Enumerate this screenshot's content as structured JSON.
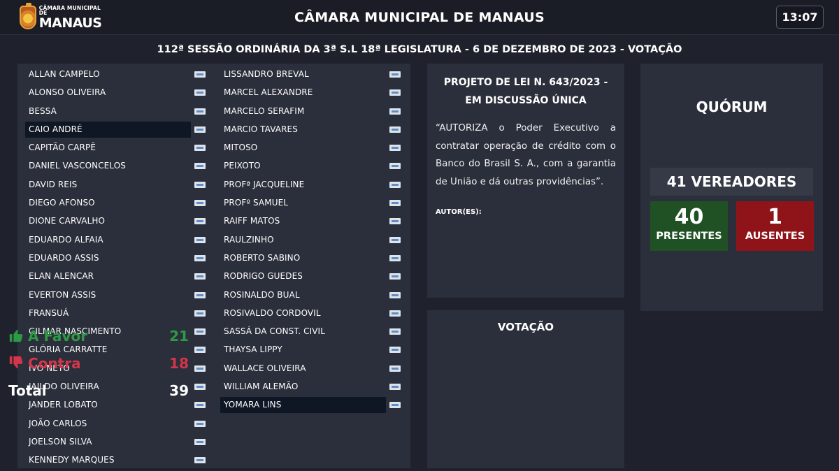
{
  "header": {
    "logo_small": "CÂMARA MUNICIPAL DE",
    "logo_big": "MANAUS",
    "title": "CÂMARA MUNICIPAL DE MANAUS",
    "clock": "13:07"
  },
  "session": "112ª SESSÃO ORDINÁRIA DA 3ª S.L 18ª LEGISLATURA - 6 DE DEZEMBRO DE 2023 - VOTAÇÃO",
  "colors": {
    "contra": "#d5354a",
    "favor": "#2e9a45",
    "no_vote": "#0f1624",
    "present": "#1f5124",
    "absent": "#8f1419"
  },
  "councillors": {
    "column_a": [
      {
        "name": "ALLAN CAMPELO",
        "status": "contra"
      },
      {
        "name": "ALONSO OLIVEIRA",
        "status": "favor"
      },
      {
        "name": "BESSA",
        "status": "contra"
      },
      {
        "name": "CAIO ANDRÉ",
        "status": "none"
      },
      {
        "name": "CAPITÃO CARPÊ",
        "status": "contra"
      },
      {
        "name": "DANIEL VASCONCELOS",
        "status": "contra"
      },
      {
        "name": "DAVID REIS",
        "status": "favor"
      },
      {
        "name": "DIEGO AFONSO",
        "status": "contra"
      },
      {
        "name": "DIONE CARVALHO",
        "status": "favor"
      },
      {
        "name": "EDUARDO ALFAIA",
        "status": "favor"
      },
      {
        "name": "EDUARDO ASSIS",
        "status": "favor"
      },
      {
        "name": "ELAN ALENCAR",
        "status": "favor"
      },
      {
        "name": "EVERTON ASSIS",
        "status": "contra"
      },
      {
        "name": "FRANSUÁ",
        "status": "favor"
      },
      {
        "name": "GILMAR NASCIMENTO",
        "status": "favor"
      },
      {
        "name": "GLÓRIA CARRATTE",
        "status": "contra"
      },
      {
        "name": "IVO NETO",
        "status": "contra"
      },
      {
        "name": "JAILDO OLIVEIRA",
        "status": "contra"
      },
      {
        "name": "JANDER LOBATO",
        "status": "favor"
      },
      {
        "name": "JOÃO CARLOS",
        "status": "contra"
      },
      {
        "name": "JOELSON SILVA",
        "status": "favor"
      },
      {
        "name": "KENNEDY MARQUES",
        "status": "favor"
      }
    ],
    "column_b": [
      {
        "name": "LISSANDRO BREVAL",
        "status": "contra"
      },
      {
        "name": "MARCEL ALEXANDRE",
        "status": "favor"
      },
      {
        "name": "MARCELO SERAFIM",
        "status": "contra"
      },
      {
        "name": "MARCIO TAVARES",
        "status": "contra"
      },
      {
        "name": "MITOSO",
        "status": "favor"
      },
      {
        "name": "PEIXOTO",
        "status": "favor"
      },
      {
        "name": "PROFª JACQUELINE",
        "status": "contra"
      },
      {
        "name": "PROFº SAMUEL",
        "status": "favor"
      },
      {
        "name": "RAIFF MATOS",
        "status": "favor"
      },
      {
        "name": "RAULZINHO",
        "status": "favor"
      },
      {
        "name": "ROBERTO SABINO",
        "status": "favor"
      },
      {
        "name": "RODRIGO GUEDES",
        "status": "contra"
      },
      {
        "name": "ROSINALDO BUAL",
        "status": "favor"
      },
      {
        "name": "ROSIVALDO CORDOVIL",
        "status": "contra"
      },
      {
        "name": "SASSÁ DA CONST. CIVIL",
        "status": "favor"
      },
      {
        "name": "THAYSA LIPPY",
        "status": "contra"
      },
      {
        "name": "WALLACE OLIVEIRA",
        "status": "favor"
      },
      {
        "name": "WILLIAM ALEMÃO",
        "status": "contra"
      },
      {
        "name": "YOMARA LINS",
        "status": "none"
      }
    ]
  },
  "bill": {
    "title": "PROJETO DE LEI N. 643/2023 - EM DISCUSSÃO ÚNICA",
    "text": "“AUTORIZA o Poder Executivo a contratar operação de crédito com o Banco do Brasil S. A., com a garantia de União e dá outras providências”.",
    "authors_label": "AUTOR(ES):"
  },
  "voting": {
    "title": "VOTAÇÃO",
    "favor_label": "A Favor",
    "favor_count": "21",
    "contra_label": "Contra",
    "contra_count": "18",
    "total_label": "Total",
    "total_count": "39"
  },
  "quorum": {
    "title": "QUÓRUM",
    "vereadores": "41 VEREADORES",
    "present_count": "40",
    "present_label": "PRESENTES",
    "absent_count": "1",
    "absent_label": "AUSENTES"
  }
}
